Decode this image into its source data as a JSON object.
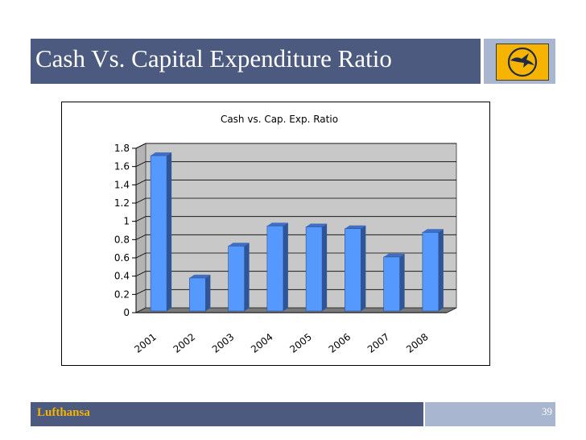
{
  "slide": {
    "title": "Cash Vs. Capital Expenditure Ratio",
    "footer_brand": "Lufthansa",
    "page_number": "39"
  },
  "logo": {
    "icon": "crane-logo-icon",
    "color": "#f6b400"
  },
  "colors": {
    "header": "#4b5a7e",
    "header_light": "#a8b6cf",
    "bar": "#5599ff",
    "bar_side": "#2f5597",
    "plot_bg": "#c8c8c8",
    "floor": "#7a7a7a"
  },
  "chart_data": {
    "type": "bar",
    "title": "Cash vs. Cap. Exp. Ratio",
    "categories": [
      "2001",
      "2002",
      "2003",
      "2004",
      "2005",
      "2006",
      "2007",
      "2008"
    ],
    "values": [
      1.72,
      0.38,
      0.73,
      0.95,
      0.94,
      0.92,
      0.61,
      0.88
    ],
    "yticks": [
      "0",
      "0.2",
      "0.4",
      "0.6",
      "0.8",
      "1",
      "1.2",
      "1.4",
      "1.6",
      "1.8"
    ],
    "ylim": [
      0,
      1.8
    ],
    "xlabel": "",
    "ylabel": "",
    "grid": true,
    "legend": false,
    "style": "3d-column"
  }
}
